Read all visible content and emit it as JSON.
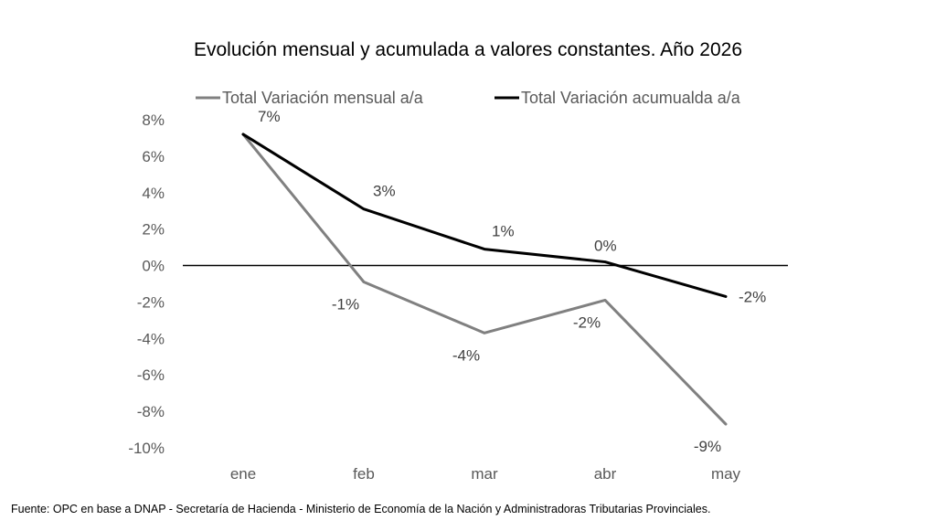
{
  "chart_data": {
    "type": "line",
    "title": "Evolución mensual y acumulada a valores constantes. Año 2026",
    "categories": [
      "ene",
      "feb",
      "mar",
      "abr",
      "may"
    ],
    "ylim": [
      -10,
      8
    ],
    "yticks": [
      8,
      6,
      4,
      2,
      0,
      -2,
      -4,
      -6,
      -8,
      -10
    ],
    "ytick_labels": [
      "8%",
      "6%",
      "4%",
      "2%",
      "0%",
      "-2%",
      "-4%",
      "-6%",
      "-8%",
      "-10%"
    ],
    "grid": false,
    "legend_position": "top",
    "series": [
      {
        "name": "Total Variación mensual a/a",
        "color": "#808080",
        "values": [
          7.2,
          -0.9,
          -3.7,
          -1.9,
          -8.7
        ],
        "labels": [
          "",
          "-1%",
          "-4%",
          "-2%",
          "-9%"
        ],
        "label_position": "below"
      },
      {
        "name": "Total Variación acumualda a/a",
        "color": "#000000",
        "values": [
          7.2,
          3.1,
          0.9,
          0.2,
          -1.7
        ],
        "labels": [
          "7%",
          "3%",
          "1%",
          "0%",
          "-2%"
        ],
        "label_position": "above-right"
      }
    ]
  },
  "source_note": "Fuente: OPC en base a DNAP - Secretaría de Hacienda - Ministerio de Economía de la Nación y Administradoras Tributarias Provinciales."
}
